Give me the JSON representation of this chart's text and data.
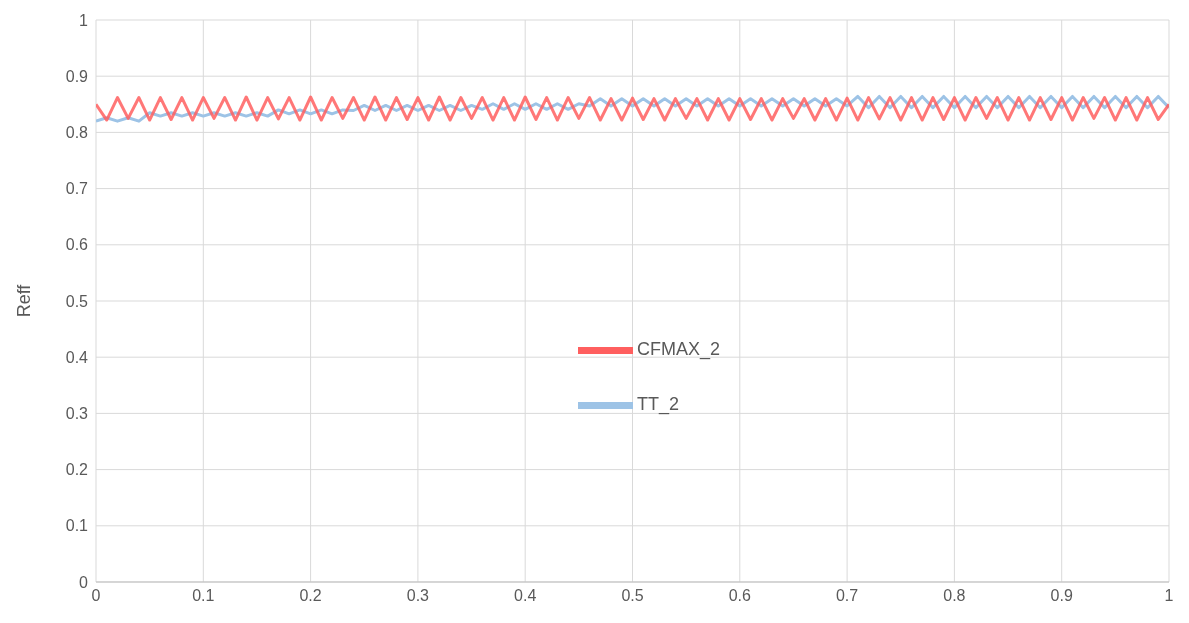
{
  "chart_data": {
    "type": "line",
    "ylabel": "Reff",
    "x": [
      0,
      0.01,
      0.02,
      0.03,
      0.04,
      0.05,
      0.06,
      0.07,
      0.08,
      0.09,
      0.1,
      0.11,
      0.12,
      0.13,
      0.14,
      0.15,
      0.16,
      0.17,
      0.18,
      0.19,
      0.2,
      0.21,
      0.22,
      0.23,
      0.24,
      0.25,
      0.26,
      0.27,
      0.28,
      0.29,
      0.3,
      0.31,
      0.32,
      0.33,
      0.34,
      0.35,
      0.36,
      0.37,
      0.38,
      0.39,
      0.4,
      0.41,
      0.42,
      0.43,
      0.44,
      0.45,
      0.46,
      0.47,
      0.48,
      0.49,
      0.5,
      0.51,
      0.52,
      0.53,
      0.54,
      0.55,
      0.56,
      0.57,
      0.58,
      0.59,
      0.6,
      0.61,
      0.62,
      0.63,
      0.64,
      0.65,
      0.66,
      0.67,
      0.68,
      0.69,
      0.7,
      0.71,
      0.72,
      0.73,
      0.74,
      0.75,
      0.76,
      0.77,
      0.78,
      0.79,
      0.8,
      0.81,
      0.82,
      0.83,
      0.84,
      0.85,
      0.86,
      0.87,
      0.88,
      0.89,
      0.9,
      0.91,
      0.92,
      0.93,
      0.94,
      0.95,
      0.96,
      0.97,
      0.98,
      0.99,
      1
    ],
    "series": [
      {
        "name": "TT_2",
        "color": "#9dc3e6",
        "values": [
          0.82,
          0.826,
          0.82,
          0.826,
          0.82,
          0.835,
          0.829,
          0.835,
          0.829,
          0.835,
          0.829,
          0.835,
          0.829,
          0.835,
          0.829,
          0.835,
          0.829,
          0.84,
          0.833,
          0.84,
          0.833,
          0.84,
          0.833,
          0.84,
          0.839,
          0.848,
          0.839,
          0.848,
          0.839,
          0.848,
          0.839,
          0.848,
          0.839,
          0.848,
          0.839,
          0.848,
          0.841,
          0.851,
          0.841,
          0.851,
          0.841,
          0.851,
          0.841,
          0.851,
          0.841,
          0.851,
          0.847,
          0.86,
          0.847,
          0.86,
          0.847,
          0.86,
          0.847,
          0.86,
          0.847,
          0.86,
          0.847,
          0.86,
          0.847,
          0.86,
          0.847,
          0.86,
          0.847,
          0.86,
          0.847,
          0.86,
          0.847,
          0.86,
          0.847,
          0.86,
          0.847,
          0.864,
          0.844,
          0.864,
          0.844,
          0.864,
          0.844,
          0.864,
          0.844,
          0.864,
          0.844,
          0.864,
          0.844,
          0.864,
          0.844,
          0.864,
          0.844,
          0.864,
          0.844,
          0.864,
          0.844,
          0.864,
          0.844,
          0.864,
          0.844,
          0.864,
          0.844,
          0.864,
          0.844,
          0.864,
          0.844
        ]
      },
      {
        "name": "CFMAX_2",
        "color": "#ff5f5f",
        "values": [
          0.85,
          0.822,
          0.862,
          0.825,
          0.862,
          0.822,
          0.862,
          0.823,
          0.862,
          0.822,
          0.862,
          0.825,
          0.862,
          0.822,
          0.863,
          0.822,
          0.862,
          0.824,
          0.862,
          0.822,
          0.863,
          0.822,
          0.862,
          0.825,
          0.862,
          0.822,
          0.863,
          0.822,
          0.862,
          0.823,
          0.862,
          0.822,
          0.863,
          0.822,
          0.862,
          0.825,
          0.862,
          0.822,
          0.862,
          0.822,
          0.863,
          0.823,
          0.862,
          0.822,
          0.862,
          0.825,
          0.862,
          0.822,
          0.86,
          0.822,
          0.861,
          0.823,
          0.86,
          0.822,
          0.86,
          0.825,
          0.86,
          0.822,
          0.86,
          0.822,
          0.86,
          0.823,
          0.86,
          0.822,
          0.86,
          0.825,
          0.86,
          0.822,
          0.86,
          0.822,
          0.861,
          0.822,
          0.862,
          0.824,
          0.862,
          0.822,
          0.862,
          0.822,
          0.862,
          0.823,
          0.862,
          0.822,
          0.862,
          0.825,
          0.862,
          0.822,
          0.862,
          0.822,
          0.862,
          0.823,
          0.862,
          0.822,
          0.862,
          0.825,
          0.862,
          0.822,
          0.862,
          0.822,
          0.862,
          0.823,
          0.85
        ]
      }
    ],
    "xlim": [
      0,
      1
    ],
    "xticks": [
      0,
      0.1,
      0.2,
      0.3,
      0.4,
      0.5,
      0.6,
      0.7,
      0.8,
      0.9,
      1
    ],
    "ylim": [
      0,
      1
    ],
    "yticks": [
      0,
      0.1,
      0.2,
      0.3,
      0.4,
      0.5,
      0.6,
      0.7,
      0.8,
      0.9,
      1
    ],
    "grid": true,
    "legend": "center",
    "marker": "none",
    "line_style": "solid"
  }
}
